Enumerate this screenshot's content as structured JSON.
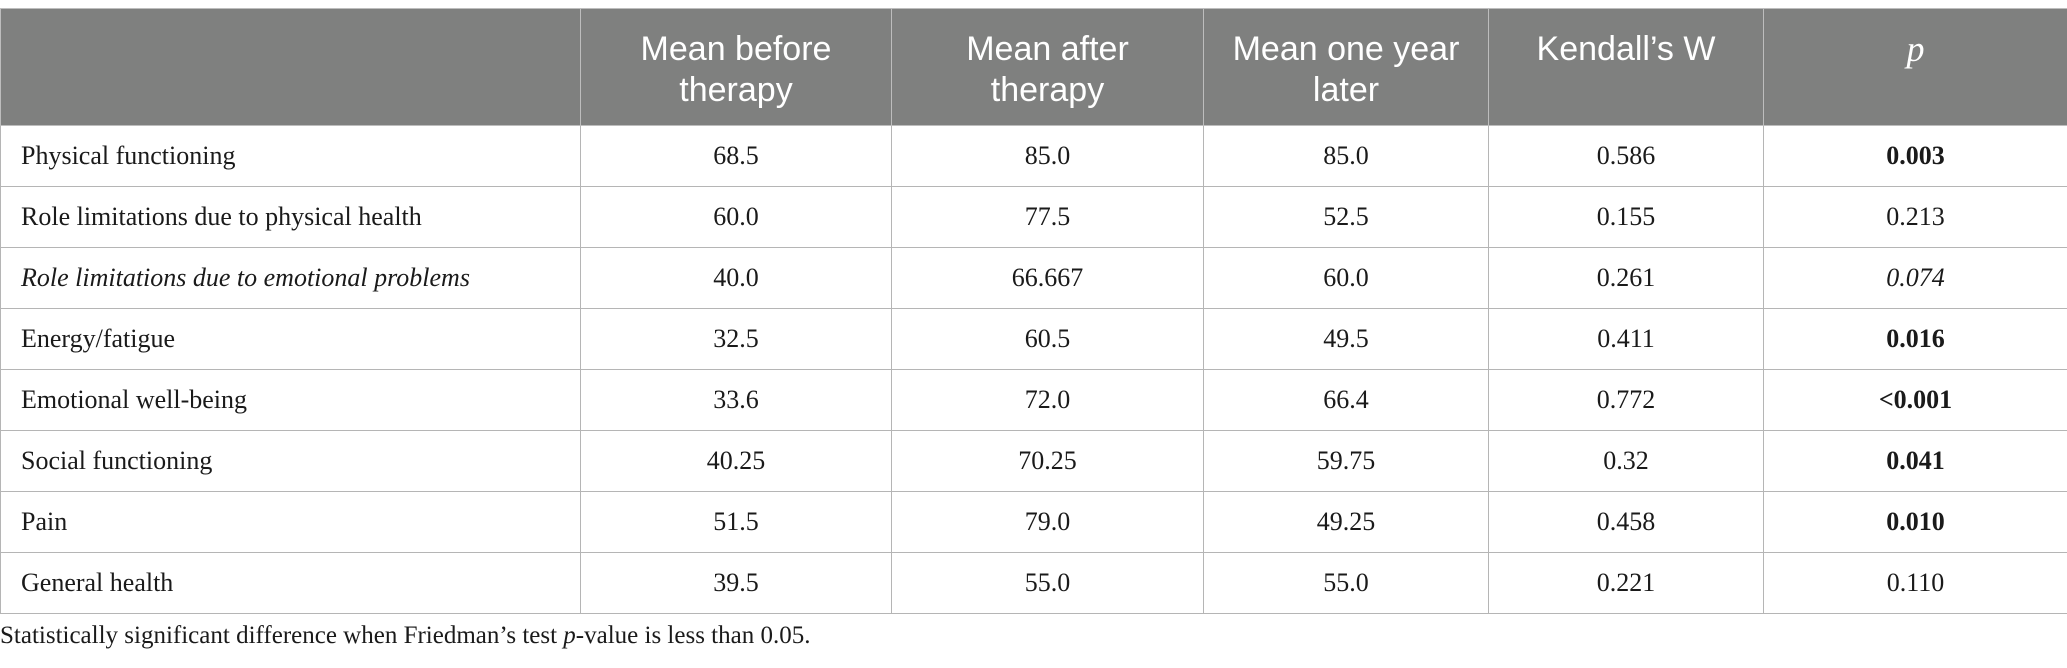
{
  "table": {
    "headers": [
      "",
      "Mean before therapy",
      "Mean after therapy",
      "Mean one year later",
      "Kendall’s W",
      "p"
    ],
    "rows": [
      {
        "label": "Physical functioning",
        "before": "68.5",
        "after": "85.0",
        "year_later": "85.0",
        "kendall_w": "0.586",
        "p": "0.003"
      },
      {
        "label": "Role limitations due to physical health",
        "before": "60.0",
        "after": "77.5",
        "year_later": "52.5",
        "kendall_w": "0.155",
        "p": "0.213"
      },
      {
        "label": "Role limitations due to emotional problems",
        "before": "40.0",
        "after": "66.667",
        "year_later": "60.0",
        "kendall_w": "0.261",
        "p": "0.074"
      },
      {
        "label": "Energy/fatigue",
        "before": "32.5",
        "after": "60.5",
        "year_later": "49.5",
        "kendall_w": "0.411",
        "p": "0.016"
      },
      {
        "label": "Emotional well-being",
        "before": "33.6",
        "after": "72.0",
        "year_later": "66.4",
        "kendall_w": "0.772",
        "p": "<0.001"
      },
      {
        "label": "Social functioning",
        "before": "40.25",
        "after": "70.25",
        "year_later": "59.75",
        "kendall_w": "0.32",
        "p": "0.041"
      },
      {
        "label": "Pain",
        "before": "51.5",
        "after": "79.0",
        "year_later": "49.25",
        "kendall_w": "0.458",
        "p": "0.010"
      },
      {
        "label": "General health",
        "before": "39.5",
        "after": "55.0",
        "year_later": "55.0",
        "kendall_w": "0.221",
        "p": "0.110"
      }
    ]
  },
  "footnote": {
    "before": "Statistically significant difference when Friedman’s test ",
    "p_italic": "p",
    "after": "-value is less than 0.05."
  },
  "colors": {
    "header_bg": "#7f807f",
    "header_text": "#ffffff",
    "grid": "#b5b5b5"
  }
}
